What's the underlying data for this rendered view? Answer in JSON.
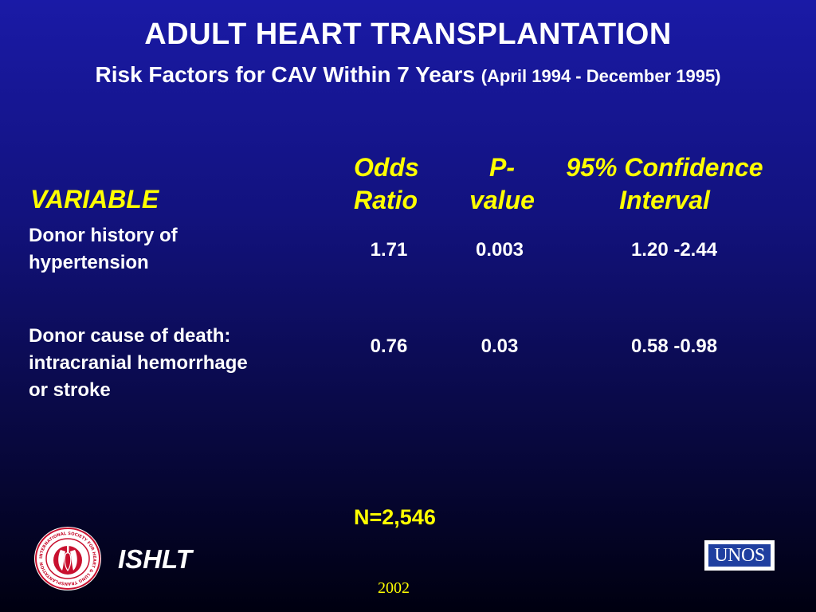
{
  "title": "ADULT HEART TRANSPLANTATION",
  "subtitle": {
    "main": "Risk Factors for CAV Within 7 Years",
    "period": "(April 1994 - December 1995)"
  },
  "table": {
    "headers": {
      "variable": "VARIABLE",
      "odds_ratio": [
        "Odds",
        "Ratio"
      ],
      "p_value": [
        "P-",
        "value"
      ],
      "ci": [
        "95% Confidence",
        "Interval"
      ]
    },
    "rows": [
      {
        "variable": [
          "Donor history of",
          "hypertension"
        ],
        "odds_ratio": "1.71",
        "p_value": "0.003",
        "ci": "1.20 -2.44"
      },
      {
        "variable": [
          "Donor cause of death:",
          "intracranial hemorrhage",
          "or stroke"
        ],
        "odds_ratio": "0.76",
        "p_value": "0.03",
        "ci": "0.58 -0.98"
      }
    ]
  },
  "n_label": "N=2,546",
  "logo_left": {
    "icon": "ishlt-seal-icon",
    "ring_text": "INTERNATIONAL SOCIETY FOR HEART & LUNG TRANSPLANTATION",
    "label": "ISHLT"
  },
  "logo_right": {
    "icon": "unos-logo-icon",
    "label": "UNOS"
  },
  "year": "2002",
  "colors": {
    "background_top": "#1a1aa6",
    "background_bottom": "#000010",
    "heading_yellow": "#ffff00",
    "text_white": "#ffffff",
    "seal_red": "#c8102e"
  }
}
